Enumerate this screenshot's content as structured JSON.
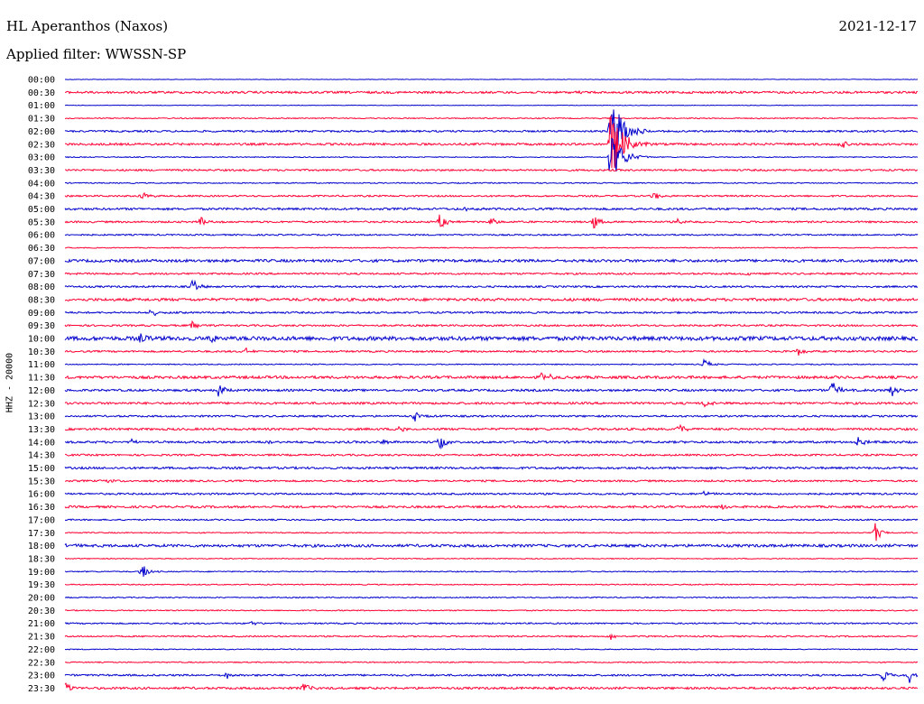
{
  "header": {
    "station": "HL Aperanthos (Naxos)",
    "date": "2021-12-17",
    "filter": "Applied filter: WWSSN-SP",
    "channel": "HHZ - 20000"
  },
  "colors": {
    "even": "#0000cc",
    "odd": "#ff0033"
  },
  "chart_data": {
    "type": "line",
    "title": "HL Aperanthos (Naxos)",
    "subtitle": "Applied filter: WWSSN-SP",
    "ylabel": "HHZ - 20000",
    "row_labels": [
      "00:00",
      "00:30",
      "01:00",
      "01:30",
      "02:00",
      "02:30",
      "03:00",
      "03:30",
      "04:00",
      "04:30",
      "05:00",
      "05:30",
      "06:00",
      "06:30",
      "07:00",
      "07:30",
      "08:00",
      "08:30",
      "09:00",
      "09:30",
      "10:00",
      "10:30",
      "11:00",
      "11:30",
      "12:00",
      "12:30",
      "13:00",
      "13:30",
      "14:00",
      "14:30",
      "15:00",
      "15:30",
      "16:00",
      "16:30",
      "17:00",
      "17:30",
      "18:00",
      "18:30",
      "19:00",
      "19:30",
      "20:00",
      "20:30",
      "21:00",
      "21:30",
      "22:00",
      "22:30",
      "23:00",
      "23:30"
    ],
    "noise_levels": [
      0.3,
      1.2,
      0.3,
      0.6,
      1.0,
      1.2,
      0.5,
      1.0,
      0.6,
      0.9,
      1.2,
      1.0,
      0.8,
      0.5,
      1.5,
      1.0,
      1.0,
      1.5,
      1.0,
      1.0,
      2.2,
      1.0,
      0.6,
      1.5,
      1.2,
      1.2,
      1.0,
      1.2,
      1.2,
      1.0,
      1.2,
      1.0,
      1.0,
      1.2,
      0.8,
      0.6,
      1.5,
      0.5,
      0.6,
      0.6,
      0.6,
      0.6,
      0.8,
      0.8,
      0.5,
      0.6,
      1.0,
      1.2
    ],
    "events": [
      {
        "row": 1,
        "x": 0.6,
        "amp": 1
      },
      {
        "row": 4,
        "x": 0.64,
        "amp": 50
      },
      {
        "row": 5,
        "x": 0.64,
        "amp": 45
      },
      {
        "row": 5,
        "x": 0.91,
        "amp": 5
      },
      {
        "row": 6,
        "x": 0.64,
        "amp": 30
      },
      {
        "row": 9,
        "x": 0.09,
        "amp": 6
      },
      {
        "row": 9,
        "x": 0.69,
        "amp": 6
      },
      {
        "row": 10,
        "x": 0.47,
        "amp": 3
      },
      {
        "row": 11,
        "x": 0.16,
        "amp": 6
      },
      {
        "row": 11,
        "x": 0.44,
        "amp": 10
      },
      {
        "row": 11,
        "x": 0.5,
        "amp": 5
      },
      {
        "row": 11,
        "x": 0.62,
        "amp": 8
      },
      {
        "row": 11,
        "x": 0.72,
        "amp": 4
      },
      {
        "row": 15,
        "x": 0.8,
        "amp": 2
      },
      {
        "row": 16,
        "x": 0.15,
        "amp": 10
      },
      {
        "row": 18,
        "x": 0.1,
        "amp": 6
      },
      {
        "row": 19,
        "x": 0.15,
        "amp": 6
      },
      {
        "row": 20,
        "x": 0.09,
        "amp": 6
      },
      {
        "row": 20,
        "x": 0.17,
        "amp": 6
      },
      {
        "row": 21,
        "x": 0.21,
        "amp": 5
      },
      {
        "row": 21,
        "x": 0.86,
        "amp": 6
      },
      {
        "row": 22,
        "x": 0.75,
        "amp": 6
      },
      {
        "row": 23,
        "x": 0.56,
        "amp": 10
      },
      {
        "row": 24,
        "x": 0.18,
        "amp": 10
      },
      {
        "row": 24,
        "x": 0.9,
        "amp": 12
      },
      {
        "row": 24,
        "x": 0.97,
        "amp": 8
      },
      {
        "row": 25,
        "x": 0.75,
        "amp": 5
      },
      {
        "row": 26,
        "x": 0.41,
        "amp": 6
      },
      {
        "row": 27,
        "x": 0.39,
        "amp": 6
      },
      {
        "row": 27,
        "x": 0.72,
        "amp": 8
      },
      {
        "row": 28,
        "x": 0.08,
        "amp": 4
      },
      {
        "row": 28,
        "x": 0.24,
        "amp": 4
      },
      {
        "row": 28,
        "x": 0.37,
        "amp": 5
      },
      {
        "row": 28,
        "x": 0.44,
        "amp": 8
      },
      {
        "row": 28,
        "x": 0.93,
        "amp": 6
      },
      {
        "row": 31,
        "x": 0.05,
        "amp": 4
      },
      {
        "row": 32,
        "x": 0.75,
        "amp": 4
      },
      {
        "row": 33,
        "x": 0.77,
        "amp": 4
      },
      {
        "row": 35,
        "x": 0.95,
        "amp": 12
      },
      {
        "row": 36,
        "x": 0.0,
        "amp": 4
      },
      {
        "row": 38,
        "x": 0.09,
        "amp": 10
      },
      {
        "row": 42,
        "x": 0.22,
        "amp": 4
      },
      {
        "row": 43,
        "x": 0.64,
        "amp": 4
      },
      {
        "row": 46,
        "x": 0.19,
        "amp": 4
      },
      {
        "row": 46,
        "x": 0.96,
        "amp": 10
      },
      {
        "row": 46,
        "x": 0.99,
        "amp": 10
      },
      {
        "row": 47,
        "x": 0.0,
        "amp": 8
      },
      {
        "row": 47,
        "x": 0.28,
        "amp": 6
      }
    ]
  }
}
